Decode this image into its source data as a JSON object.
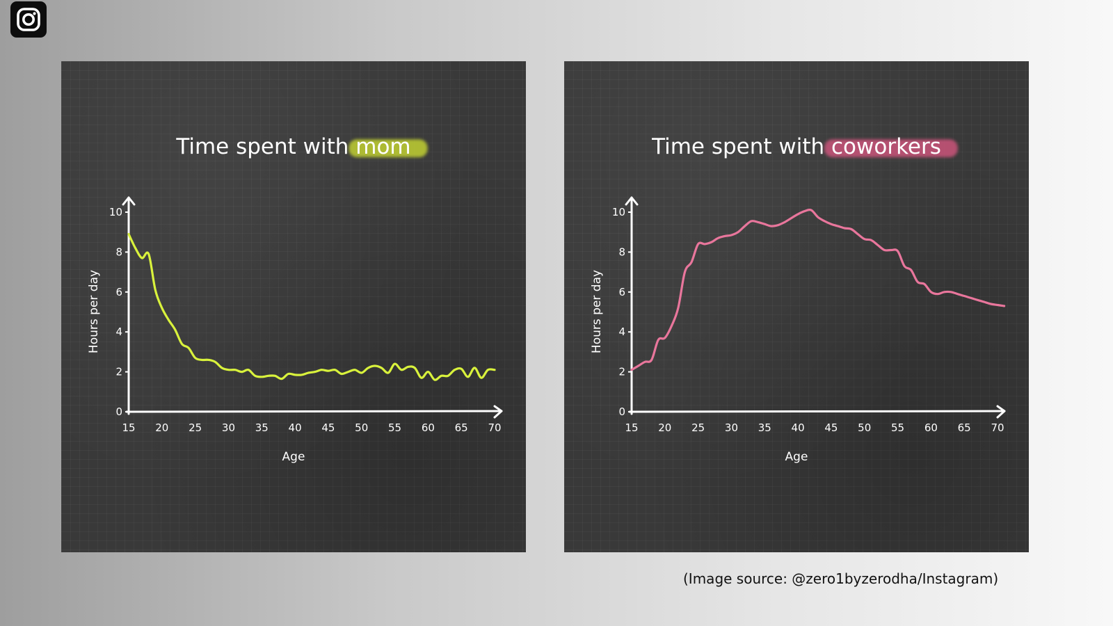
{
  "icons": {
    "logo": "instagram-icon"
  },
  "source_caption": "(Image source: @zero1byzerodha/Instagram)",
  "chart_data": [
    {
      "type": "line",
      "title": "Time spent with mom",
      "title_plain": "Time spent with ",
      "title_highlight": "mom",
      "highlight_color": "#c6d633",
      "line_color": "#d9f23c",
      "xlabel": "Age",
      "ylabel": "Hours per day",
      "xlim": [
        15,
        70
      ],
      "ylim": [
        0,
        10
      ],
      "xticks": [
        15,
        20,
        25,
        30,
        35,
        40,
        45,
        50,
        55,
        60,
        65,
        70
      ],
      "yticks": [
        0,
        2,
        4,
        6,
        8,
        10
      ],
      "grid": false,
      "series": [
        {
          "x": [
            15,
            16,
            17,
            18,
            19,
            20,
            21,
            22,
            23,
            24,
            25,
            26,
            27,
            28,
            29,
            30,
            31,
            32,
            33,
            34,
            35,
            36,
            37,
            38,
            39,
            40,
            41,
            42,
            43,
            44,
            45,
            46,
            47,
            48,
            49,
            50,
            51,
            52,
            53,
            54,
            55,
            56,
            57,
            58,
            59,
            60,
            61,
            62,
            63,
            64,
            65,
            66,
            67,
            68,
            69,
            70
          ],
          "y": [
            8.9,
            8.2,
            7.7,
            7.9,
            6.1,
            5.2,
            4.6,
            4.1,
            3.4,
            3.2,
            2.7,
            2.6,
            2.6,
            2.5,
            2.2,
            2.1,
            2.1,
            2.0,
            2.1,
            1.8,
            1.75,
            1.8,
            1.8,
            1.65,
            1.9,
            1.85,
            1.85,
            1.95,
            2.0,
            2.1,
            2.05,
            2.1,
            1.9,
            2.0,
            2.1,
            1.95,
            2.2,
            2.3,
            2.2,
            1.95,
            2.4,
            2.1,
            2.25,
            2.2,
            1.7,
            2.0,
            1.6,
            1.8,
            1.8,
            2.1,
            2.15,
            1.75,
            2.2,
            1.7,
            2.1,
            2.1
          ]
        }
      ]
    },
    {
      "type": "line",
      "title": "Time spent with coworkers",
      "title_plain": "Time spent with ",
      "title_highlight": "coworkers",
      "highlight_color": "#d0557d",
      "line_color": "#e9769c",
      "xlabel": "Age",
      "ylabel": "Hours per day",
      "xlim": [
        15,
        70
      ],
      "ylim": [
        0,
        10
      ],
      "xticks": [
        15,
        20,
        25,
        30,
        35,
        40,
        45,
        50,
        55,
        60,
        65,
        70
      ],
      "yticks": [
        0,
        2,
        4,
        6,
        8,
        10
      ],
      "grid": false,
      "series": [
        {
          "x": [
            15,
            16,
            17,
            18,
            19,
            20,
            21,
            22,
            23,
            24,
            25,
            26,
            27,
            28,
            29,
            30,
            31,
            32,
            33,
            34,
            35,
            36,
            37,
            38,
            39,
            40,
            41,
            42,
            43,
            44,
            45,
            46,
            47,
            48,
            49,
            50,
            51,
            52,
            53,
            54,
            55,
            56,
            57,
            58,
            59,
            60,
            61,
            62,
            63,
            64,
            65,
            66,
            67,
            68,
            69,
            70,
            71
          ],
          "y": [
            2.1,
            2.3,
            2.5,
            2.6,
            3.6,
            3.7,
            4.3,
            5.2,
            7.0,
            7.5,
            8.4,
            8.4,
            8.5,
            8.7,
            8.8,
            8.85,
            9.0,
            9.3,
            9.55,
            9.5,
            9.4,
            9.3,
            9.35,
            9.5,
            9.7,
            9.9,
            10.05,
            10.1,
            9.75,
            9.55,
            9.4,
            9.3,
            9.2,
            9.15,
            8.9,
            8.65,
            8.6,
            8.35,
            8.1,
            8.1,
            8.05,
            7.3,
            7.1,
            6.5,
            6.4,
            6.0,
            5.9,
            6.0,
            6.0,
            5.9,
            5.8,
            5.7,
            5.6,
            5.5,
            5.4,
            5.35,
            5.3
          ]
        }
      ]
    }
  ]
}
